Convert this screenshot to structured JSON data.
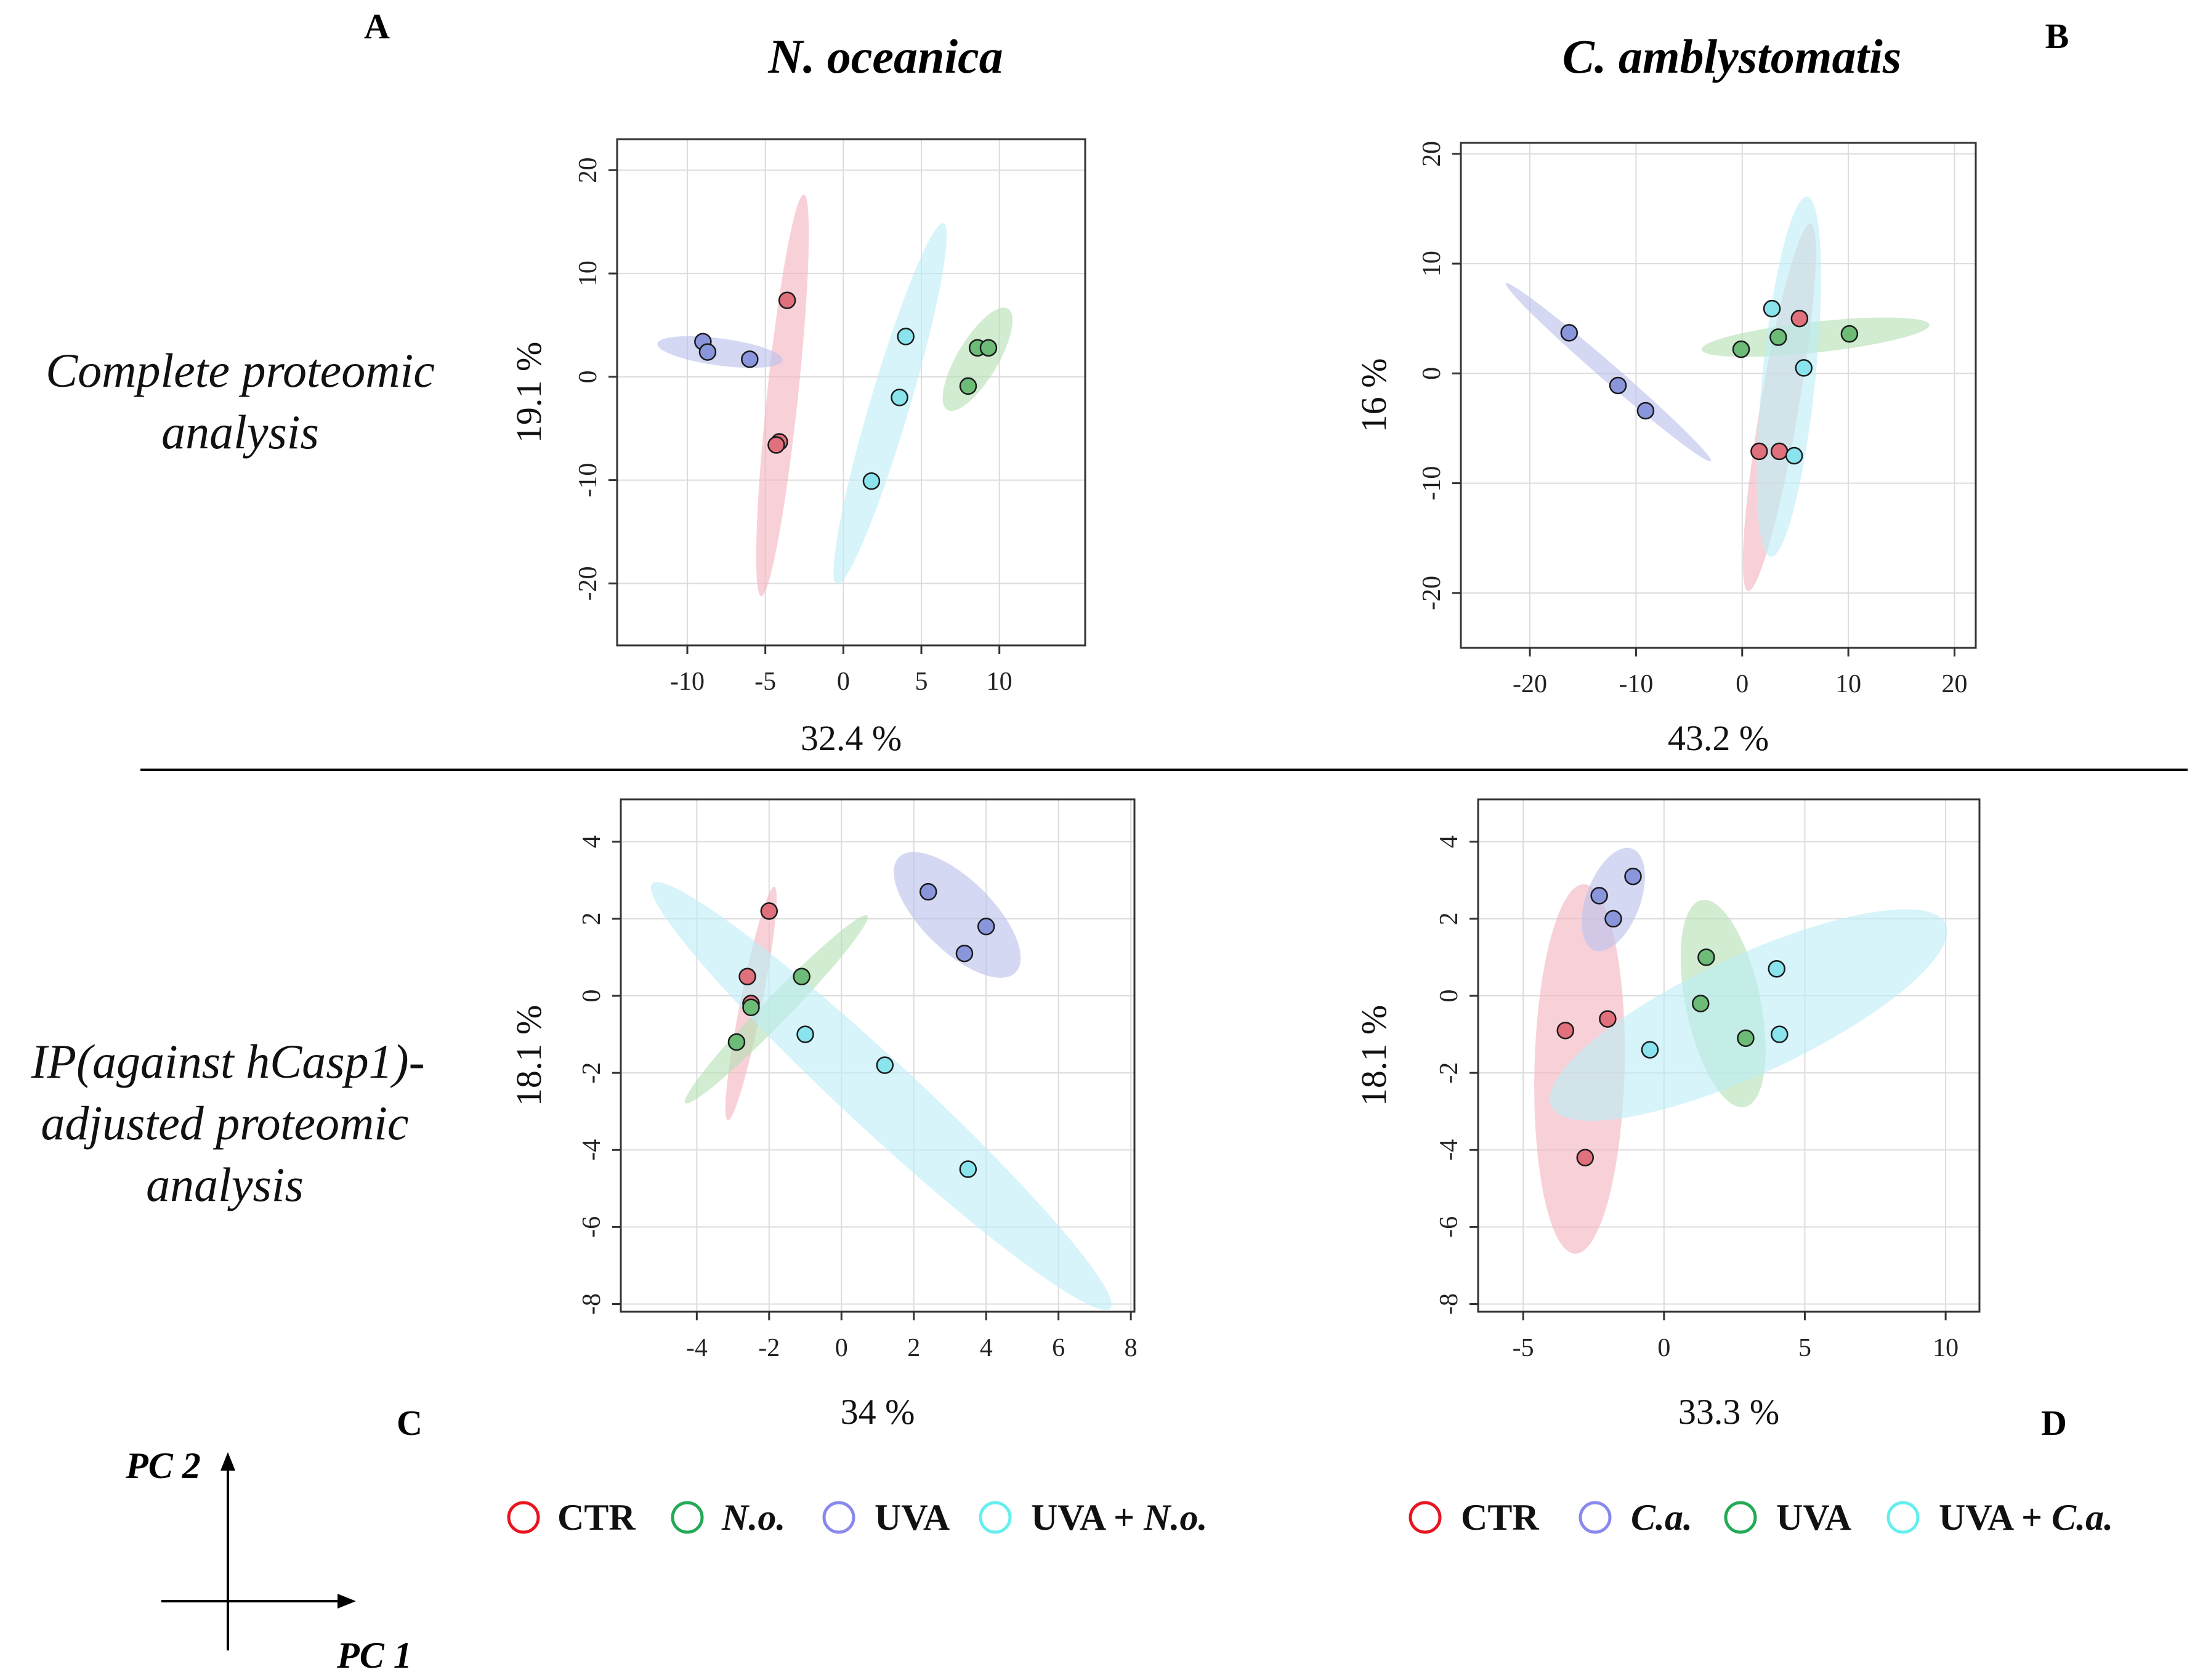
{
  "headers": {
    "panel_A": "A",
    "panel_B": "B",
    "panel_C": "C",
    "panel_D": "D",
    "species_left": "N. oceanica",
    "species_right": "C. amblystomatis",
    "row_top": [
      "Complete proteomic",
      "analysis"
    ],
    "row_bottom": [
      "IP(against hCasp1)-",
      "adjusted proteomic",
      "analysis"
    ]
  },
  "pc_axes": {
    "pc1": "PC 1",
    "pc2": "PC 2"
  },
  "colors": {
    "red_pt": "#e0707c",
    "red_ell": "#f4b4c0",
    "red_legend": "#e8151f",
    "green_pt": "#6cbc78",
    "green_ell": "#b4e0b4",
    "green_legend": "#22aa55",
    "blue_pt": "#8a96dc",
    "blue_ell": "#bcc0ec",
    "blue_legend": "#8888ee",
    "cyan_pt": "#8ae4ee",
    "cyan_ell": "#bdeef6",
    "cyan_legend": "#66eeee"
  },
  "legend_left": [
    {
      "color": "red",
      "text": "CTR",
      "prefix": "",
      "italic": ""
    },
    {
      "color": "green",
      "text": "",
      "prefix": "",
      "italic": "N.o."
    },
    {
      "color": "blue",
      "text": "UVA",
      "prefix": "",
      "italic": ""
    },
    {
      "color": "cyan",
      "text": "",
      "prefix": "UVA + ",
      "italic": "N.o."
    }
  ],
  "legend_right": [
    {
      "color": "red",
      "text": "CTR",
      "prefix": "",
      "italic": ""
    },
    {
      "color": "blue",
      "text": "",
      "prefix": "",
      "italic": "C.a."
    },
    {
      "color": "green",
      "text": "UVA",
      "prefix": "",
      "italic": ""
    },
    {
      "color": "cyan",
      "text": "",
      "prefix": "UVA + ",
      "italic": "C.a."
    }
  ],
  "chart_data": [
    {
      "type": "scatter",
      "panel": "A",
      "xlabel": "32.4 %",
      "ylabel": "19.1 %",
      "xlim": [
        -14.5,
        15.5
      ],
      "ylim": [
        -26,
        23
      ],
      "xticks": [
        -10,
        -5,
        0,
        5,
        10
      ],
      "yticks": [
        -20,
        -10,
        0,
        10,
        20
      ],
      "series": [
        {
          "name": "CTR",
          "color": "red",
          "points": [
            [
              -3.6,
              7.4
            ],
            [
              -4.1,
              -6.3
            ],
            [
              -4.3,
              -6.6
            ]
          ],
          "ellipse": {
            "cx": -3.9,
            "cy": -1.8,
            "rx": 19.5,
            "ry": 1.0,
            "angle": 86
          }
        },
        {
          "name": "N.o.",
          "color": "green",
          "points": [
            [
              8.6,
              2.8
            ],
            [
              9.3,
              2.8
            ],
            [
              8.0,
              -0.9
            ]
          ],
          "ellipse": {
            "cx": 8.6,
            "cy": 1.7,
            "rx": 5.3,
            "ry": 1.4,
            "angle": 70
          }
        },
        {
          "name": "UVA",
          "color": "blue",
          "points": [
            [
              -9.0,
              3.4
            ],
            [
              -8.7,
              2.4
            ],
            [
              -6.0,
              1.7
            ]
          ],
          "ellipse": {
            "cx": -7.9,
            "cy": 2.4,
            "rx": 4.1,
            "ry": 1.3,
            "angle": -12
          }
        },
        {
          "name": "UVA + N.o.",
          "color": "cyan",
          "points": [
            [
              4.0,
              3.9
            ],
            [
              3.6,
              -2.0
            ],
            [
              1.8,
              -10.1
            ]
          ],
          "ellipse": {
            "cx": 3.0,
            "cy": -2.6,
            "rx": 17.8,
            "ry": 1.3,
            "angle": 79
          }
        }
      ]
    },
    {
      "type": "scatter",
      "panel": "B",
      "xlabel": "43.2 %",
      "ylabel": "16 %",
      "xlim": [
        -26.5,
        22
      ],
      "ylim": [
        -25,
        21
      ],
      "xticks": [
        -20,
        -10,
        0,
        10,
        20
      ],
      "yticks": [
        -20,
        -10,
        0,
        10,
        20
      ],
      "series": [
        {
          "name": "CTR",
          "color": "red",
          "points": [
            [
              5.4,
              5.0
            ],
            [
              1.6,
              -7.1
            ],
            [
              3.5,
              -7.1
            ]
          ],
          "ellipse": {
            "cx": 3.5,
            "cy": -3.1,
            "rx": 17.0,
            "ry": 1.8,
            "angle": 80
          }
        },
        {
          "name": "C.a.",
          "color": "blue",
          "points": [
            [
              -16.3,
              3.7
            ],
            [
              -11.7,
              -1.1
            ],
            [
              -9.1,
              -3.4
            ]
          ],
          "ellipse": {
            "cx": -12.6,
            "cy": 0.1,
            "rx": 12.6,
            "ry": 0.8,
            "angle": -40
          }
        },
        {
          "name": "UVA",
          "color": "green",
          "points": [
            [
              -0.1,
              2.2
            ],
            [
              3.4,
              3.3
            ],
            [
              10.1,
              3.6
            ]
          ],
          "ellipse": {
            "cx": 6.9,
            "cy": 3.3,
            "rx": 10.8,
            "ry": 1.4,
            "angle": 6
          }
        },
        {
          "name": "UVA + C.a.",
          "color": "cyan",
          "points": [
            [
              2.8,
              5.9
            ],
            [
              5.8,
              0.5
            ],
            [
              4.9,
              -7.5
            ]
          ],
          "ellipse": {
            "cx": 4.4,
            "cy": -0.3,
            "rx": 16.5,
            "ry": 2.5,
            "angle": 84
          }
        }
      ]
    },
    {
      "type": "scatter",
      "panel": "C",
      "xlabel": "34 %",
      "ylabel": "18.1 %",
      "xlim": [
        -6.1,
        8.1
      ],
      "ylim": [
        -8.2,
        5.1
      ],
      "xticks": [
        -4,
        -2,
        0,
        2,
        4,
        6,
        8
      ],
      "yticks": [
        -8,
        -6,
        -4,
        -2,
        0,
        2,
        4
      ],
      "series": [
        {
          "name": "CTR",
          "color": "red",
          "points": [
            [
              -2.0,
              2.2
            ],
            [
              -2.6,
              0.5
            ],
            [
              -2.5,
              -0.2
            ]
          ],
          "ellipse": {
            "cx": -2.5,
            "cy": -0.2,
            "rx": 3.1,
            "ry": 0.3,
            "angle": 78
          }
        },
        {
          "name": "N.o.",
          "color": "green",
          "points": [
            [
              -1.1,
              0.5
            ],
            [
              -2.5,
              -0.3
            ],
            [
              -2.9,
              -1.2
            ]
          ],
          "ellipse": {
            "cx": -1.8,
            "cy": -0.35,
            "rx": 3.5,
            "ry": 0.35,
            "angle": 44
          }
        },
        {
          "name": "UVA",
          "color": "blue",
          "points": [
            [
              2.4,
              2.7
            ],
            [
              3.4,
              1.1
            ],
            [
              4.0,
              1.8
            ]
          ],
          "ellipse": {
            "cx": 3.2,
            "cy": 2.1,
            "rx": 2.2,
            "ry": 0.95,
            "angle": -42
          }
        },
        {
          "name": "UVA + N.o.",
          "color": "cyan",
          "points": [
            [
              -1.0,
              -1.0
            ],
            [
              1.2,
              -1.8
            ],
            [
              3.5,
              -4.5
            ]
          ],
          "ellipse": {
            "cx": 1.1,
            "cy": -2.6,
            "rx": 8.4,
            "ry": 0.95,
            "angle": -41
          }
        }
      ]
    },
    {
      "type": "scatter",
      "panel": "D",
      "xlabel": "33.3 %",
      "ylabel": "18.1 %",
      "xlim": [
        -6.6,
        11.2
      ],
      "ylim": [
        -8.2,
        5.1
      ],
      "xticks": [
        -5,
        0,
        5,
        10
      ],
      "yticks": [
        -8,
        -6,
        -4,
        -2,
        0,
        2,
        4
      ],
      "series": [
        {
          "name": "CTR",
          "color": "red",
          "points": [
            [
              -3.5,
              -0.9
            ],
            [
              -2.0,
              -0.6
            ],
            [
              -2.8,
              -4.2
            ]
          ],
          "ellipse": {
            "cx": -3.0,
            "cy": -1.9,
            "rx": 4.8,
            "ry": 1.6,
            "angle": 88
          }
        },
        {
          "name": "C.a.",
          "color": "blue",
          "points": [
            [
              -2.3,
              2.6
            ],
            [
              -1.8,
              2.0
            ],
            [
              -1.1,
              3.1
            ]
          ],
          "ellipse": {
            "cx": -1.8,
            "cy": 2.5,
            "rx": 1.5,
            "ry": 0.9,
            "angle": 56
          }
        },
        {
          "name": "UVA",
          "color": "green",
          "points": [
            [
              1.5,
              1.0
            ],
            [
              1.3,
              -0.2
            ],
            [
              2.9,
              -1.1
            ]
          ],
          "ellipse": {
            "cx": 2.1,
            "cy": -0.2,
            "rx": 2.8,
            "ry": 1.3,
            "angle": -72
          }
        },
        {
          "name": "UVA + C.a.",
          "color": "cyan",
          "points": [
            [
              -0.5,
              -1.4
            ],
            [
              4.0,
              0.7
            ],
            [
              4.1,
              -1.0
            ]
          ],
          "ellipse": {
            "cx": 3.0,
            "cy": -0.5,
            "rx": 7.4,
            "ry": 1.6,
            "angle": 18
          }
        }
      ]
    }
  ]
}
